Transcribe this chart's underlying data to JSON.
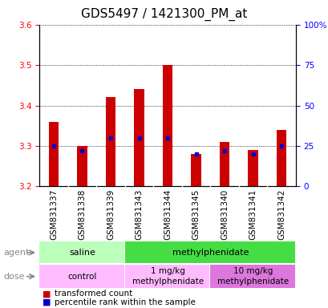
{
  "title": "GDS5497 / 1421300_PM_at",
  "samples": [
    "GSM831337",
    "GSM831338",
    "GSM831339",
    "GSM831343",
    "GSM831344",
    "GSM831345",
    "GSM831340",
    "GSM831341",
    "GSM831342"
  ],
  "transformed_counts": [
    3.36,
    3.3,
    3.42,
    3.44,
    3.5,
    3.28,
    3.31,
    3.29,
    3.34
  ],
  "percentile_ranks": [
    25,
    22,
    30,
    30,
    30,
    20,
    22,
    20,
    25
  ],
  "y_min": 3.2,
  "y_max": 3.6,
  "y_ticks": [
    3.2,
    3.3,
    3.4,
    3.5,
    3.6
  ],
  "y2_ticks": [
    0,
    25,
    50,
    75,
    100
  ],
  "bar_color": "#cc0000",
  "percentile_color": "#0000cc",
  "bar_width": 0.35,
  "agent_groups": [
    {
      "text": "saline",
      "start": 0,
      "end": 2,
      "color": "#bbffbb"
    },
    {
      "text": "methylphenidate",
      "start": 3,
      "end": 8,
      "color": "#44dd44"
    }
  ],
  "dose_groups": [
    {
      "text": "control",
      "start": 0,
      "end": 2,
      "color": "#ffbbff"
    },
    {
      "text": "1 mg/kg\nmethylphenidate",
      "start": 3,
      "end": 5,
      "color": "#ffbbff"
    },
    {
      "text": "10 mg/kg\nmethylphenidate",
      "start": 6,
      "end": 8,
      "color": "#dd77dd"
    }
  ],
  "legend_bar_label": "transformed count",
  "legend_pct_label": "percentile rank within the sample",
  "xlabel_agent": "agent",
  "xlabel_dose": "dose",
  "background_color": "#ffffff",
  "plot_bg": "#ffffff",
  "xtick_bg": "#dddddd",
  "title_fontsize": 11,
  "tick_fontsize": 7.5,
  "label_fontsize": 8,
  "legend_fontsize": 7.5
}
